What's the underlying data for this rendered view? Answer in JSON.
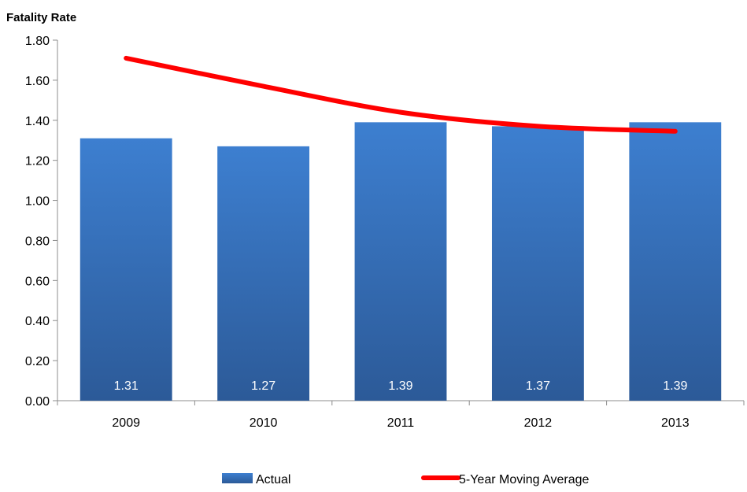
{
  "chart_data": {
    "type": "bar",
    "title": "Fatality Rate",
    "categories": [
      "2009",
      "2010",
      "2011",
      "2012",
      "2013"
    ],
    "series": [
      {
        "name": "Actual",
        "type": "bar",
        "values": [
          1.31,
          1.27,
          1.39,
          1.37,
          1.39
        ],
        "labels": [
          "1.31",
          "1.27",
          "1.39",
          "1.37",
          "1.39"
        ],
        "color": "#3a6fbe"
      },
      {
        "name": "5-Year Moving Average",
        "type": "line",
        "values": [
          1.71,
          1.57,
          1.44,
          1.37,
          1.345
        ],
        "color": "#ff0000"
      }
    ],
    "ylim": [
      0,
      1.8
    ],
    "yticks": [
      "0.00",
      "0.20",
      "0.40",
      "0.60",
      "0.80",
      "1.00",
      "1.20",
      "1.40",
      "1.60",
      "1.80"
    ],
    "grid": false,
    "legend": "bottom"
  }
}
